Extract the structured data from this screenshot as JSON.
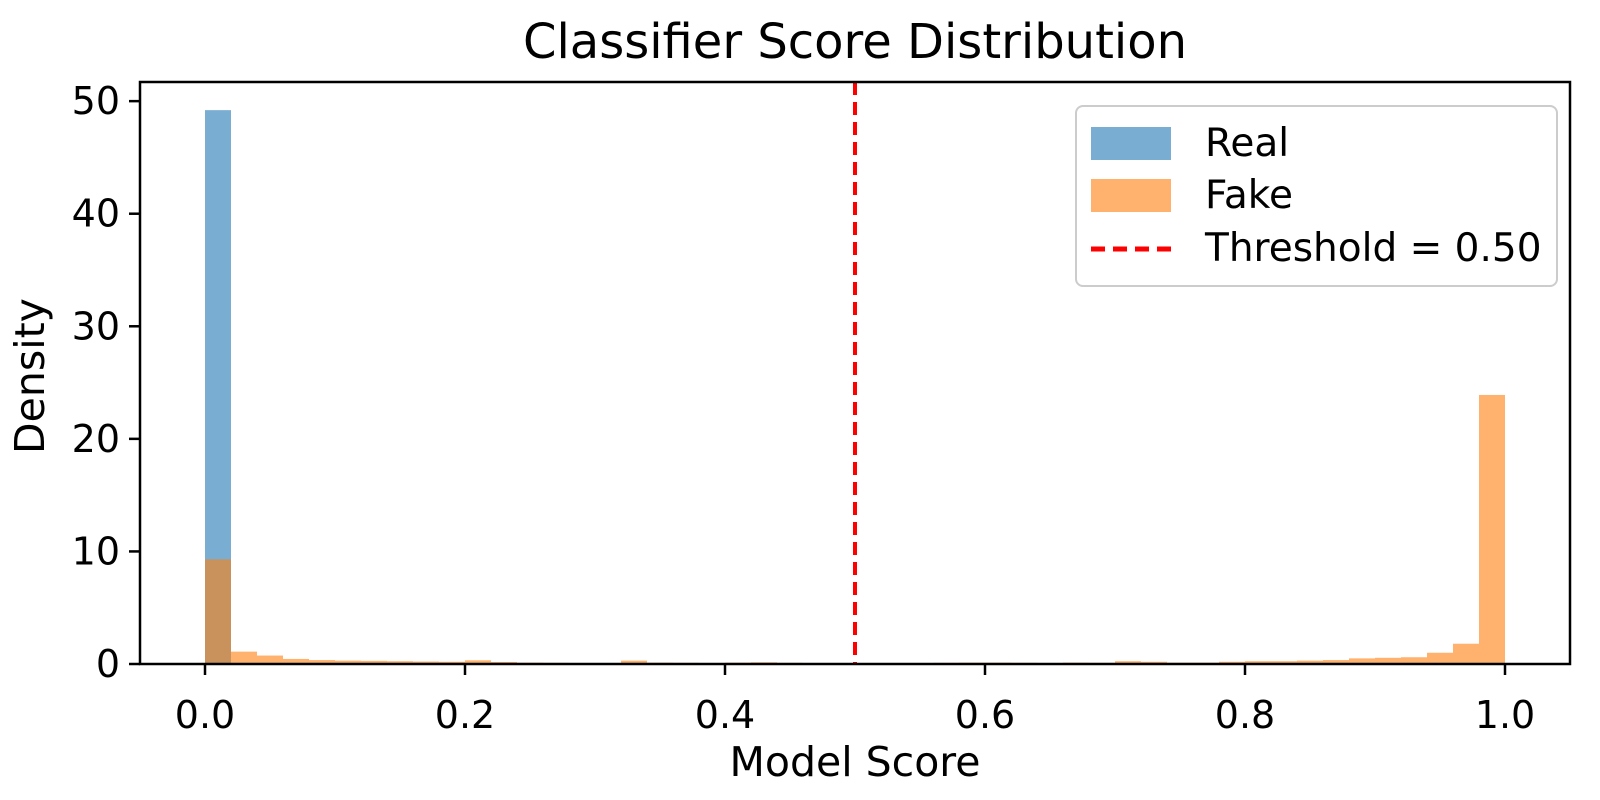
{
  "figure": {
    "kind": "matplotlib-style histogram figure",
    "background": "#ffffff"
  },
  "chart_data": {
    "type": "bar",
    "subtype": "overlaid-density-histogram",
    "title": "Classifier Score Distribution",
    "xlabel": "Model Score",
    "ylabel": "Density",
    "xlim": [
      -0.05,
      1.05
    ],
    "ylim": [
      0,
      51.7
    ],
    "xticks": [
      "0.0",
      "0.2",
      "0.4",
      "0.6",
      "0.8",
      "1.0"
    ],
    "xtick_values": [
      0.0,
      0.2,
      0.4,
      0.6,
      0.8,
      1.0
    ],
    "yticks": [
      "0",
      "10",
      "20",
      "30",
      "40",
      "50"
    ],
    "ytick_values": [
      0,
      10,
      20,
      30,
      40,
      50
    ],
    "grid": false,
    "bin_start": 0.0,
    "bin_width": 0.02,
    "series": [
      {
        "name": "Real",
        "color": "#1f77b4",
        "alpha": 0.6,
        "densities": [
          49.2,
          0,
          0,
          0,
          0,
          0,
          0,
          0,
          0,
          0,
          0,
          0,
          0,
          0,
          0,
          0,
          0,
          0,
          0,
          0,
          0,
          0,
          0,
          0,
          0,
          0,
          0,
          0,
          0,
          0,
          0,
          0,
          0,
          0,
          0,
          0,
          0,
          0,
          0,
          0,
          0,
          0,
          0,
          0,
          0,
          0,
          0,
          0,
          0,
          0
        ]
      },
      {
        "name": "Fake",
        "color": "#ff7f0e",
        "alpha": 0.6,
        "densities": [
          9.3,
          1.1,
          0.75,
          0.45,
          0.35,
          0.3,
          0.28,
          0.25,
          0.22,
          0.2,
          0.33,
          0.18,
          0.12,
          0.1,
          0.08,
          0.08,
          0.3,
          0.12,
          0.1,
          0.08,
          0.12,
          0.15,
          0.1,
          0.05,
          0.05,
          0.08,
          0.05,
          0.05,
          0.1,
          0.12,
          0.12,
          0.1,
          0.08,
          0.12,
          0.1,
          0.25,
          0.2,
          0.12,
          0.12,
          0.2,
          0.25,
          0.25,
          0.3,
          0.35,
          0.5,
          0.55,
          0.6,
          1.0,
          1.8,
          23.9
        ]
      }
    ],
    "threshold": {
      "value": 0.5,
      "label": "Threshold = 0.50",
      "color": "#ff0000",
      "linestyle": "dashed"
    },
    "legend": {
      "position": "upper right",
      "entries": [
        "Real",
        "Fake",
        "Threshold = 0.50"
      ]
    },
    "axes_color": "#000000"
  }
}
